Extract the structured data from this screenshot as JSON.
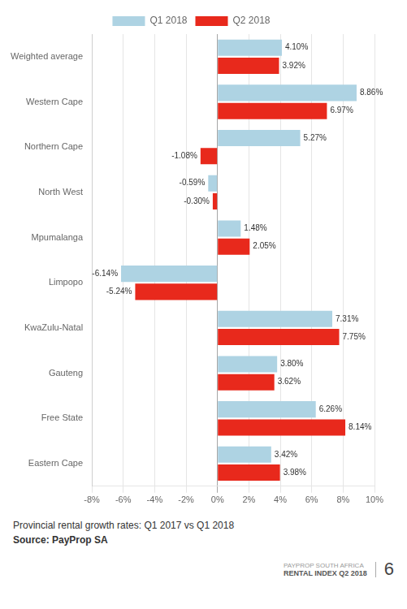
{
  "chart_data": {
    "type": "bar",
    "orientation": "horizontal",
    "categories": [
      "Eastern Cape",
      "Free State",
      "Gauteng",
      "KwaZulu-Natal",
      "Limpopo",
      "Mpumalanga",
      "North West",
      "Northern Cape",
      "Western Cape",
      "Weighted average"
    ],
    "series": [
      {
        "name": "Q1 2018",
        "color": "#aed3e3",
        "values": [
          3.42,
          6.26,
          3.8,
          7.31,
          -6.14,
          1.48,
          -0.59,
          5.27,
          8.86,
          4.1
        ],
        "value_labels": [
          "3.42%",
          "6.26%",
          "3.80%",
          "7.31%",
          "-6.14%",
          "1.48%",
          "-0.59%",
          "5.27%",
          "8.86%",
          "4.10%"
        ]
      },
      {
        "name": "Q2 2018",
        "color": "#e8291c",
        "values": [
          3.98,
          8.14,
          3.62,
          7.75,
          -5.24,
          2.05,
          -0.3,
          -1.08,
          6.97,
          3.92
        ],
        "value_labels": [
          "3.98%",
          "8.14%",
          "3.62%",
          "7.75%",
          "-5.24%",
          "2.05%",
          "-0.30%",
          "-1.08%",
          "6.97%",
          "3.92%"
        ]
      }
    ],
    "xlim": [
      -8,
      10
    ],
    "xticks": [
      {
        "value": -8,
        "label": "-8%"
      },
      {
        "value": -6,
        "label": "-6%"
      },
      {
        "value": -4,
        "label": "-4%"
      },
      {
        "value": -2,
        "label": "-2%"
      },
      {
        "value": 0,
        "label": "0%"
      },
      {
        "value": 2,
        "label": "2%"
      },
      {
        "value": 4,
        "label": "4%"
      },
      {
        "value": 6,
        "label": "6%"
      },
      {
        "value": 8,
        "label": "8%"
      },
      {
        "value": 10,
        "label": "10%"
      }
    ],
    "grid": true,
    "legend": "top",
    "data_labels": true,
    "annotations": [
      "Provincial rental growth rates: Q1 2017 vs Q1 2018",
      "Source: PayProp SA",
      "PAYPROP SOUTH AFRICA",
      "RENTAL INDEX  Q2 2018",
      "6"
    ]
  }
}
